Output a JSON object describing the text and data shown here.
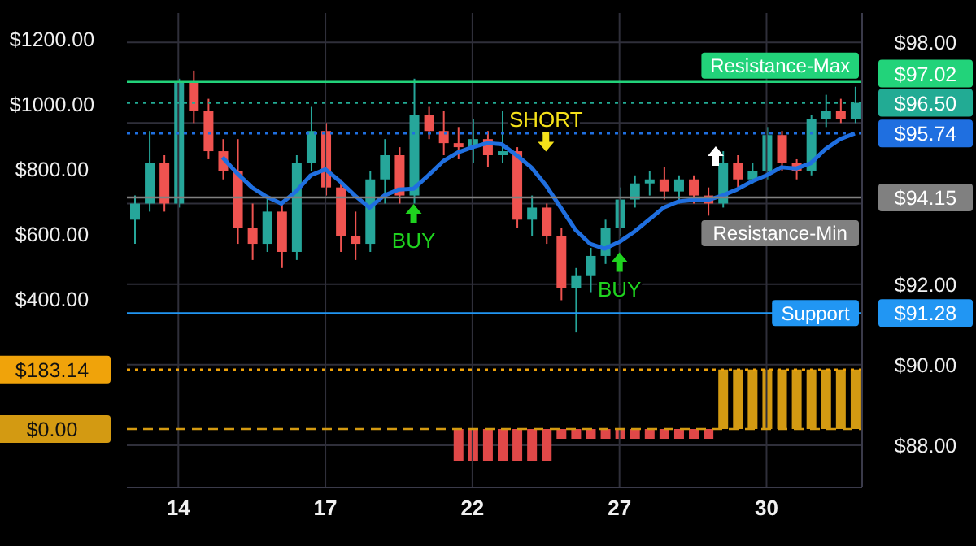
{
  "chart_data": {
    "type": "candlestick",
    "grid": true,
    "categories": [
      null,
      null,
      null,
      "14",
      null,
      null,
      null,
      null,
      null,
      null,
      null,
      null,
      null,
      "17",
      null,
      null,
      null,
      null,
      null,
      null,
      null,
      null,
      null,
      "22",
      null,
      null,
      null,
      null,
      null,
      null,
      null,
      null,
      null,
      "27",
      null,
      null,
      null,
      null,
      null,
      null,
      null,
      null,
      null,
      "30",
      null,
      null,
      null,
      null,
      null,
      null
    ],
    "ylim": [
      86.95,
      98.73
    ],
    "yticks": [
      {
        "value": 98,
        "label": "$98.00"
      },
      {
        "value": 97.02,
        "label": "$97.02"
      },
      {
        "value": 96.5,
        "label": "$96.50"
      },
      {
        "value": 96,
        "label": null
      },
      {
        "value": 95.74,
        "label": "$95.74"
      },
      {
        "value": 94.15,
        "label": "$94.15"
      },
      {
        "value": 94,
        "label": null
      },
      {
        "value": 92,
        "label": "$92.00"
      },
      {
        "value": 91.28,
        "label": "$91.28"
      },
      {
        "value": 90,
        "label": "$90.00"
      },
      {
        "value": 88,
        "label": "$88.00"
      }
    ],
    "y2lim": [
      -180,
      1280
    ],
    "y2ticks": [
      {
        "value": 1200,
        "label": "$1200.00"
      },
      {
        "value": 1000,
        "label": "$1000.00"
      },
      {
        "value": 800,
        "label": "$800.00"
      },
      {
        "value": 600,
        "label": "$600.00"
      },
      {
        "value": 400,
        "label": "$400.00"
      },
      {
        "value": 200,
        "label": null
      },
      {
        "value": 183.14,
        "label": "$183.14"
      },
      {
        "value": 0,
        "label": "$0.00"
      }
    ],
    "series": [
      {
        "ohlc": [
          [
            93.6,
            94.2,
            93.0,
            94.0
          ],
          [
            94.0,
            95.8,
            93.8,
            95.0
          ],
          [
            95.0,
            95.2,
            93.8,
            94.0
          ],
          [
            94.0,
            97.1,
            93.9,
            97.0
          ],
          [
            97.0,
            97.3,
            96.0,
            96.3
          ],
          [
            96.3,
            96.6,
            95.1,
            95.3
          ],
          [
            95.3,
            95.6,
            94.6,
            94.8
          ],
          [
            94.8,
            95.6,
            93.0,
            93.4
          ],
          [
            93.4,
            94.0,
            92.6,
            93.0
          ],
          [
            93.0,
            94.2,
            92.8,
            93.8
          ],
          [
            93.8,
            94.0,
            92.4,
            92.8
          ],
          [
            92.8,
            95.2,
            92.6,
            95.0
          ],
          [
            95.0,
            96.4,
            94.8,
            95.8
          ],
          [
            95.8,
            96.0,
            94.2,
            94.4
          ],
          [
            94.4,
            94.6,
            92.8,
            93.2
          ],
          [
            93.2,
            93.8,
            92.6,
            93.0
          ],
          [
            93.0,
            94.8,
            92.8,
            94.6
          ],
          [
            94.6,
            95.6,
            94.0,
            95.2
          ],
          [
            95.2,
            95.4,
            94.0,
            94.2
          ],
          [
            94.2,
            97.1,
            94.0,
            96.2
          ],
          [
            96.2,
            96.4,
            95.6,
            95.8
          ],
          [
            95.8,
            96.3,
            95.2,
            95.5
          ],
          [
            95.5,
            95.9,
            95.1,
            95.4
          ],
          [
            95.4,
            96.1,
            95.0,
            95.6
          ],
          [
            95.6,
            95.8,
            94.9,
            95.2
          ],
          [
            95.2,
            96.3,
            95.0,
            95.3
          ],
          [
            95.3,
            95.4,
            93.4,
            93.6
          ],
          [
            93.6,
            94.2,
            93.2,
            93.9
          ],
          [
            93.9,
            94.0,
            93.0,
            93.2
          ],
          [
            93.2,
            93.4,
            91.6,
            91.9
          ],
          [
            91.9,
            92.4,
            90.8,
            92.2
          ],
          [
            92.2,
            92.9,
            91.8,
            92.7
          ],
          [
            92.7,
            93.6,
            92.5,
            93.4
          ],
          [
            93.4,
            94.4,
            93.2,
            94.1
          ],
          [
            94.1,
            94.7,
            93.9,
            94.5
          ],
          [
            94.5,
            94.8,
            94.2,
            94.6
          ],
          [
            94.6,
            94.9,
            94.1,
            94.3
          ],
          [
            94.3,
            94.7,
            94.0,
            94.6
          ],
          [
            94.6,
            94.7,
            94.0,
            94.2
          ],
          [
            94.2,
            94.4,
            93.7,
            94.0
          ],
          [
            94.0,
            95.3,
            93.9,
            95.0
          ],
          [
            95.0,
            95.2,
            94.4,
            94.6
          ],
          [
            94.6,
            95.0,
            94.5,
            94.8
          ],
          [
            94.8,
            95.9,
            94.6,
            95.7
          ],
          [
            95.7,
            95.8,
            94.8,
            95.0
          ],
          [
            95.0,
            95.1,
            94.6,
            94.8
          ],
          [
            94.8,
            96.2,
            94.7,
            96.1
          ],
          [
            96.1,
            96.7,
            95.9,
            96.3
          ],
          [
            96.3,
            96.6,
            96.0,
            96.1
          ],
          [
            96.1,
            96.9,
            96.0,
            96.5
          ]
        ],
        "colors": [
          "#26a69a",
          "#26a69a",
          "#ef5350",
          "#26a69a",
          "#ef5350",
          "#ef5350",
          "#ef5350",
          "#ef5350",
          "#ef5350",
          "#26a69a",
          "#ef5350",
          "#26a69a",
          "#26a69a",
          "#ef5350",
          "#ef5350",
          "#ef5350",
          "#26a69a",
          "#26a69a",
          "#ef5350",
          "#26a69a",
          "#ef5350",
          "#ef5350",
          "#ef5350",
          "#26a69a",
          "#ef5350",
          "#26a69a",
          "#ef5350",
          "#26a69a",
          "#ef5350",
          "#ef5350",
          "#26a69a",
          "#26a69a",
          "#26a69a",
          "#26a69a",
          "#26a69a",
          "#26a69a",
          "#ef5350",
          "#26a69a",
          "#ef5350",
          "#ef5350",
          "#26a69a",
          "#ef5350",
          "#26a69a",
          "#26a69a",
          "#ef5350",
          "#ef5350",
          "#26a69a",
          "#26a69a",
          "#ef5350",
          "#26a69a"
        ]
      },
      {
        "type": "line",
        "color": "#1f6fe0",
        "values": [
          null,
          null,
          null,
          null,
          null,
          null,
          95.15,
          94.75,
          94.4,
          94.17,
          94.0,
          94.3,
          94.7,
          94.85,
          94.55,
          94.2,
          93.9,
          94.2,
          94.35,
          94.37,
          94.7,
          95.05,
          95.27,
          95.4,
          95.5,
          95.47,
          95.2,
          94.9,
          94.45,
          93.9,
          93.35,
          93.0,
          92.88,
          93.05,
          93.3,
          93.6,
          93.9,
          94.05,
          94.09,
          94.09,
          94.2,
          94.35,
          94.55,
          94.7,
          94.9,
          94.87,
          95.0,
          95.35,
          95.6,
          95.74
        ]
      },
      {
        "type": "bar",
        "axis": "y2",
        "values": [
          null,
          null,
          null,
          null,
          null,
          null,
          null,
          null,
          null,
          null,
          null,
          null,
          null,
          null,
          null,
          null,
          null,
          null,
          null,
          null,
          null,
          null,
          -100,
          -100,
          -100,
          -100,
          -100,
          -100,
          -100,
          -30,
          -30,
          -30,
          -30,
          -30,
          -30,
          -30,
          -30,
          -30,
          -30,
          -30,
          183.14,
          183.14,
          183.14,
          183.14,
          183.14,
          183.14,
          183.14,
          183.14,
          183.14,
          183.14
        ],
        "colors": [
          null,
          null,
          null,
          null,
          null,
          null,
          null,
          null,
          null,
          null,
          null,
          null,
          null,
          null,
          null,
          null,
          null,
          null,
          null,
          null,
          null,
          null,
          "#e04848",
          "#e04848",
          "#e04848",
          "#e04848",
          "#e04848",
          "#e04848",
          "#e04848",
          "#e04848",
          "#e04848",
          "#e04848",
          "#e04848",
          "#e04848",
          "#e04848",
          "#e04848",
          "#e04848",
          "#e04848",
          "#e04848",
          "#e04848",
          "#d39a12",
          "#d39a12",
          "#d39a12",
          "#d39a12",
          "#d39a12",
          "#d39a12",
          "#d39a12",
          "#d39a12",
          "#d39a12",
          "#d39a12"
        ]
      }
    ],
    "ref_lines": [
      {
        "axis": "y",
        "value": 97.02,
        "label": "Resistance-Max",
        "color": "#22d37a",
        "line_style": "solid"
      },
      {
        "axis": "y",
        "value": 96.5,
        "label": null,
        "color": "#22ab94",
        "line_style": "dotted"
      },
      {
        "axis": "y",
        "value": 95.74,
        "label": null,
        "color": "#1f6fe0",
        "line_style": "dotted"
      },
      {
        "axis": "y",
        "value": 94.15,
        "label": "Resistance-Min",
        "color": "#808080",
        "line_style": "solid"
      },
      {
        "axis": "y",
        "value": 91.28,
        "label": "Support",
        "color": "#2196f3",
        "line_style": "solid"
      },
      {
        "axis": "y2",
        "value": 183.14,
        "label": null,
        "color": "#f0a30a",
        "line_style": "dotted"
      },
      {
        "axis": "y2",
        "value": 0,
        "label": null,
        "color": "#d39a12",
        "line_style": "dashed"
      }
    ],
    "annotations": [
      "BUY",
      "SHORT",
      "BUY"
    ]
  }
}
